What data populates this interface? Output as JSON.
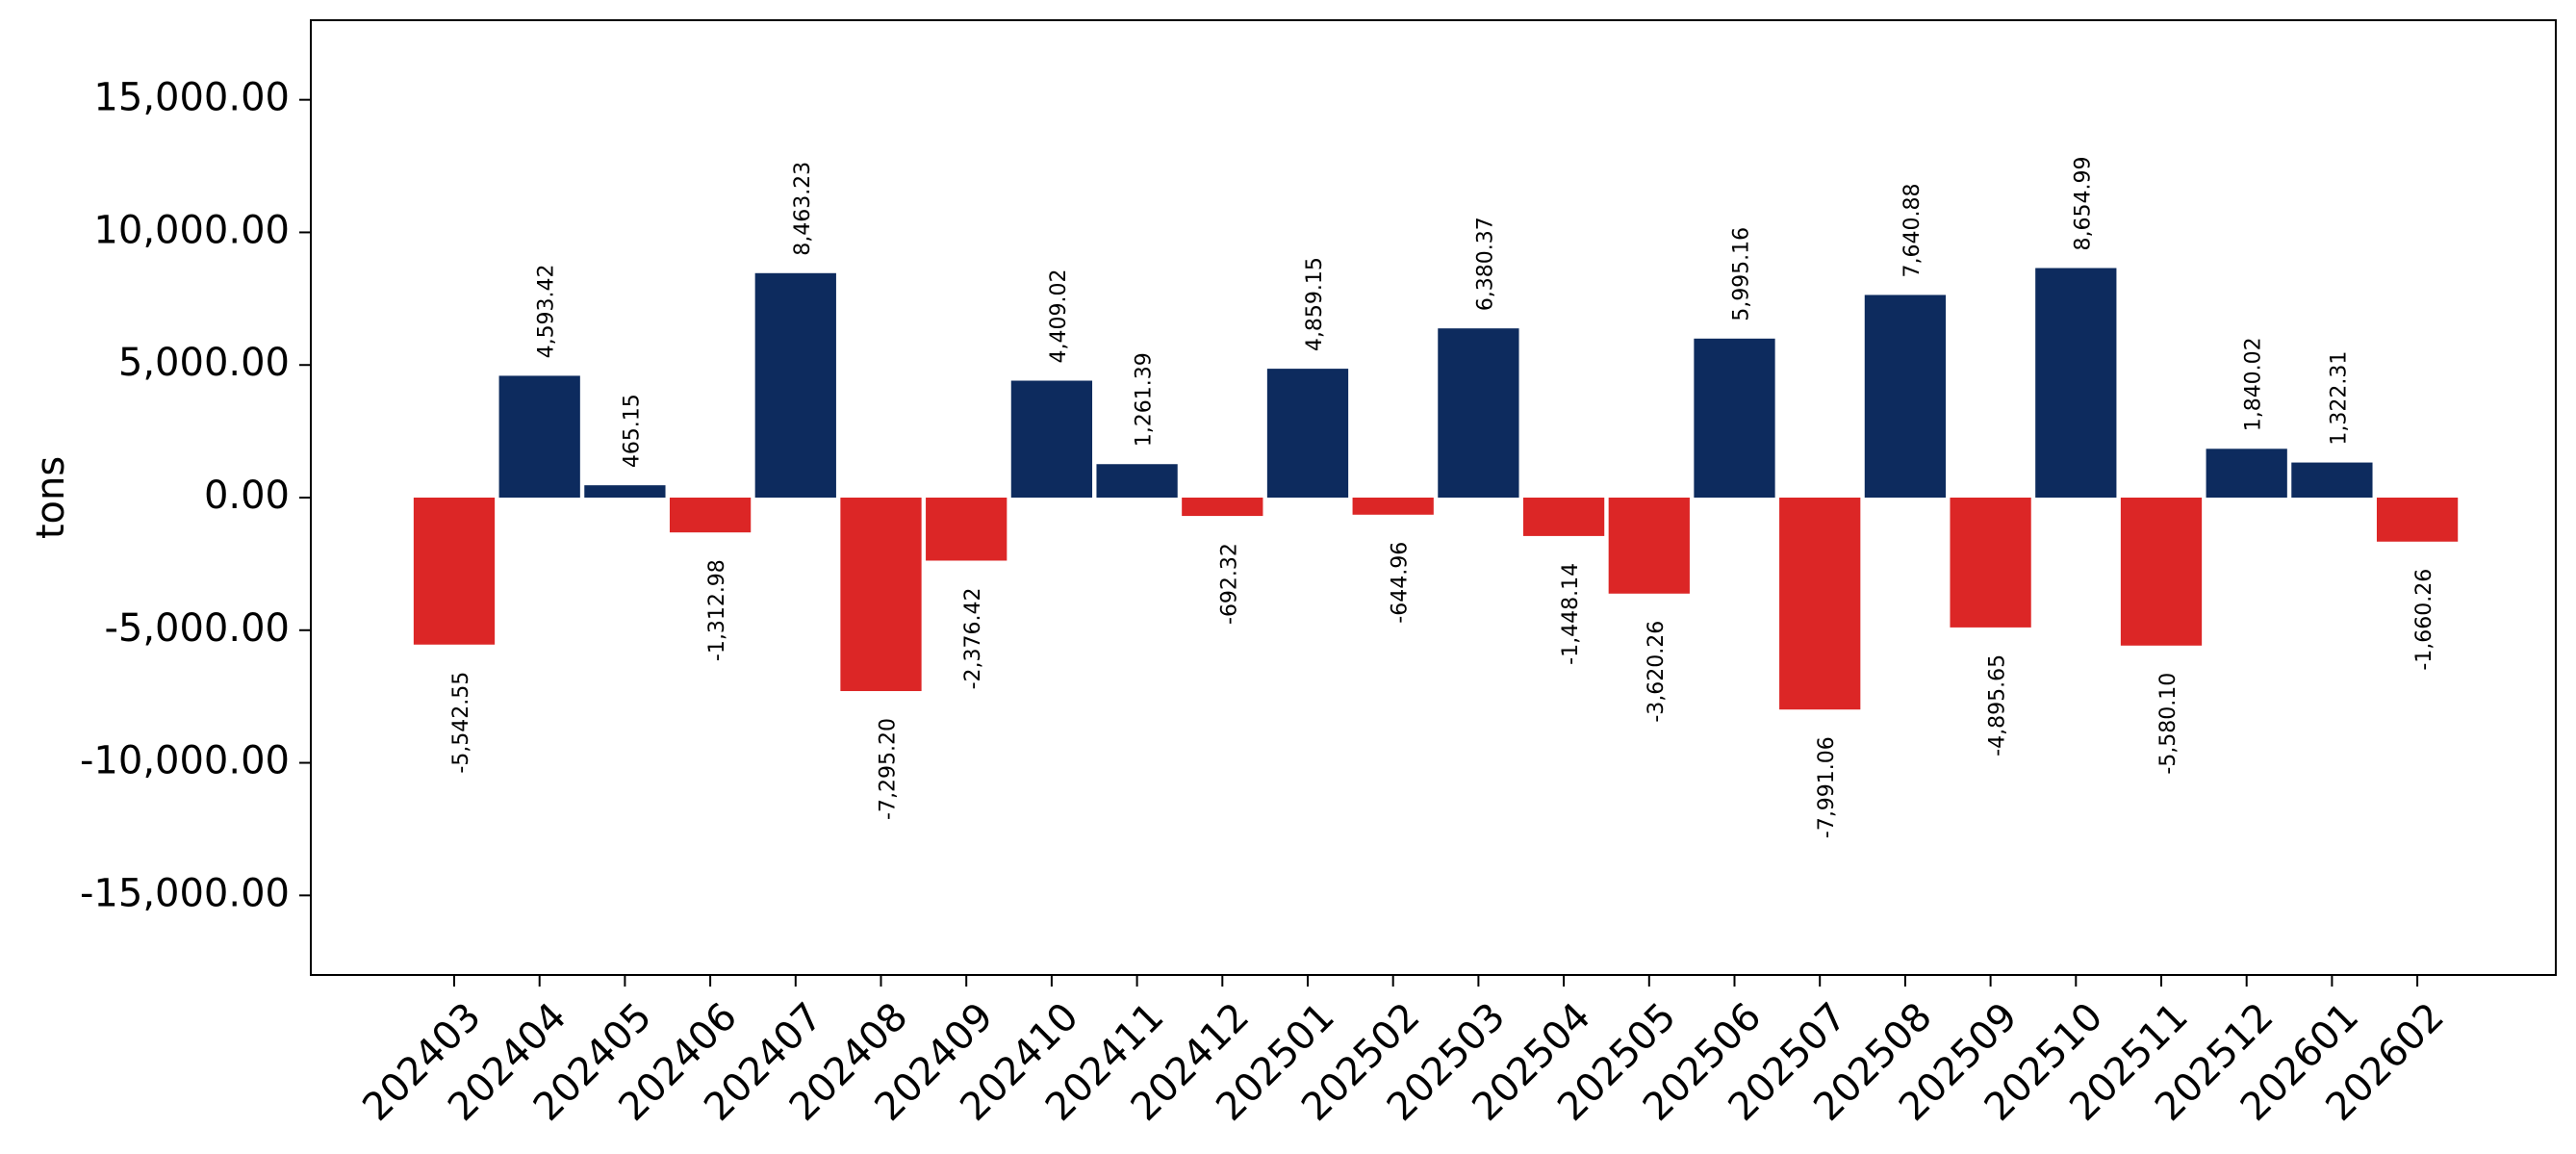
{
  "chart_data": {
    "type": "bar",
    "title": "",
    "xlabel": "",
    "ylabel": "tons",
    "ylim": [
      -18000,
      18000
    ],
    "yticks": [
      -15000,
      -10000,
      -5000,
      0,
      5000,
      10000,
      15000
    ],
    "ytick_labels": [
      "-15,000.00",
      "-10,000.00",
      "-5,000.00",
      "0.00",
      "5,000.00",
      "10,000.00",
      "15,000.00"
    ],
    "grid": false,
    "colors": {
      "positive": "#0d2b5e",
      "negative": "#dc2626"
    },
    "categories": [
      "202403",
      "202404",
      "202405",
      "202406",
      "202407",
      "202408",
      "202409",
      "202410",
      "202411",
      "202412",
      "202501",
      "202502",
      "202503",
      "202504",
      "202505",
      "202506",
      "202507",
      "202508",
      "202509",
      "202510",
      "202511",
      "202512",
      "202601",
      "202602"
    ],
    "values": [
      -5542.55,
      4593.42,
      465.15,
      -1312.98,
      8463.23,
      -7295.2,
      -2376.42,
      4409.02,
      1261.39,
      -692.32,
      4859.15,
      -644.96,
      6380.37,
      -1448.14,
      -3620.26,
      5995.16,
      -7991.06,
      7640.88,
      -4895.65,
      8654.99,
      -5580.1,
      1840.02,
      1322.31,
      -1660.26
    ],
    "data_labels": [
      "-5,542.55",
      "4,593.42",
      "465.15",
      "-1,312.98",
      "8,463.23",
      "-7,295.20",
      "-2,376.42",
      "4,409.02",
      "1,261.39",
      "-692.32",
      "4,859.15",
      "-644.96",
      "6,380.37",
      "-1,448.14",
      "-3,620.26",
      "5,995.16",
      "-7,991.06",
      "7,640.88",
      "-4,895.65",
      "8,654.99",
      "-5,580.10",
      "1,840.02",
      "1,322.31",
      "-1,660.26"
    ]
  }
}
